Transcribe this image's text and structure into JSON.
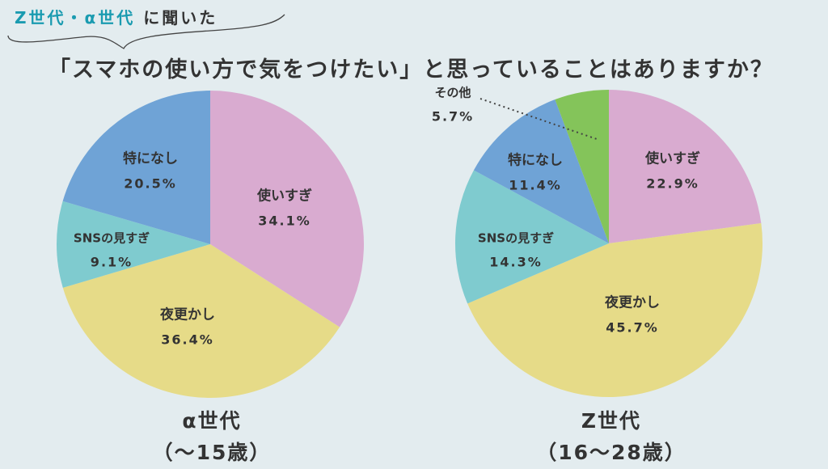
{
  "header": {
    "highlight": "Z世代・α世代",
    "rest": "に聞いた"
  },
  "title": "「スマホの使い方で気をつけたい」と思っていることはありますか？",
  "colors": {
    "使いすぎ": "#d9abd0",
    "夜更かし": "#e6db88",
    "SNSの見すぎ": "#7fcbcf",
    "特になし": "#6fa3d6",
    "その他": "#84c45a",
    "accent": "#1a9bb0"
  },
  "chart_data": [
    {
      "type": "pie",
      "title": "α世代",
      "subtitle": "（〜15歳）",
      "categories": [
        "使いすぎ",
        "夜更かし",
        "SNSの見すぎ",
        "特になし"
      ],
      "values": [
        34.1,
        36.4,
        9.1,
        20.5
      ],
      "value_labels": [
        "34.1%",
        "36.4%",
        "9.1%",
        "20.5%"
      ]
    },
    {
      "type": "pie",
      "title": "Z世代",
      "subtitle": "（16〜28歳）",
      "categories": [
        "使いすぎ",
        "夜更かし",
        "SNSの見すぎ",
        "特になし",
        "その他"
      ],
      "values": [
        22.9,
        45.7,
        14.3,
        11.4,
        5.7
      ],
      "value_labels": [
        "22.9%",
        "45.7%",
        "14.3%",
        "11.4%",
        "5.7%"
      ]
    }
  ]
}
